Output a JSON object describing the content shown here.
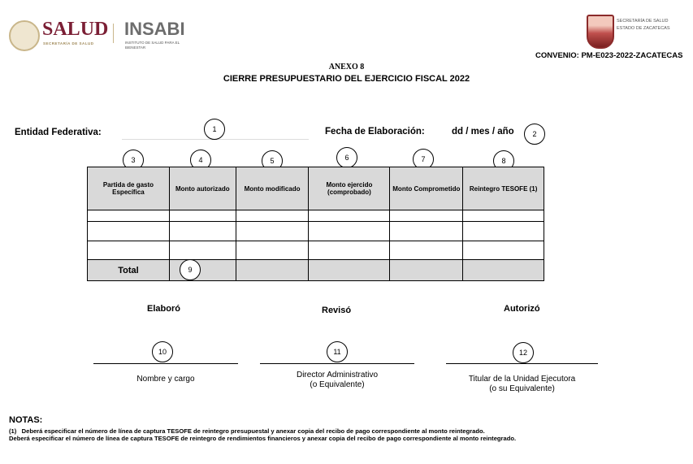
{
  "header": {
    "logo_salud": "SALUD",
    "logo_salud_sub": "SECRETARÍA DE SALUD",
    "logo_insabi": "INSABI",
    "logo_insabi_sub": "INSTITUTO DE SALUD PARA EL BIENESTAR",
    "logo_zac": "SECRETARÍA DE SALUD ESTADO DE ZACATECAS",
    "convenio": "CONVENIO: PM-E023-2022-ZACATECAS",
    "anexo": "ANEXO 8",
    "title": "CIERRE PRESUPUESTARIO DEL EJERCICIO FISCAL 2022"
  },
  "form": {
    "entidad_label": "Entidad Federativa:",
    "fecha_label": "Fecha de Elaboración:",
    "fecha_value": "dd / mes / año"
  },
  "markers": [
    "1",
    "2",
    "3",
    "4",
    "5",
    "6",
    "7",
    "8",
    "9",
    "10",
    "11",
    "12"
  ],
  "table": {
    "headers": [
      "Partida de gasto Específica",
      "Monto autorizado",
      "Monto modificado",
      "Monto ejercido (comprobado)",
      "Monto Comprometido",
      "Reintegro TESOFE (1)"
    ],
    "total_label": "Total"
  },
  "signatures": [
    {
      "title": "Elaboró",
      "caption": "Nombre y cargo"
    },
    {
      "title": "Revisó",
      "caption": "Director Administrativo",
      "caption2": "(o Equivalente)"
    },
    {
      "title": "Autorizó",
      "caption": "Titular de la Unidad Ejecutora",
      "caption2": "(o su Equivalente)"
    }
  ],
  "notes": {
    "title": "NOTAS:",
    "line1": "(1)   Deberá especificar el número de línea de captura TESOFE de reintegro presupuestal y anexar copia del recibo de pago correspondiente al monto reintegrado.",
    "line2": "Deberá especificar el número de línea de captura TESOFE de reintegro de rendimientos financieros y anexar copia del recibo de pago correspondiente al monto reintegrado."
  }
}
